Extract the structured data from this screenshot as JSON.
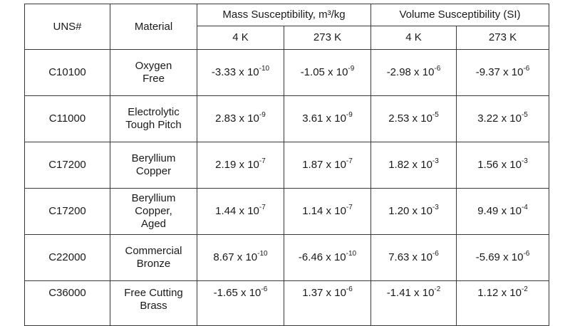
{
  "table": {
    "headers": {
      "uns": "UNS#",
      "material": "Material",
      "mass_group": "Mass Susceptibility, m³/kg",
      "volume_group": "Volume Susceptibility (SI)",
      "temps": [
        "4 K",
        "273 K",
        "4 K",
        "273 K"
      ]
    },
    "rows": [
      {
        "uns": "C10100",
        "material": [
          "Oxygen",
          "Free"
        ],
        "values": [
          {
            "m": "-3.33",
            "e": "-10"
          },
          {
            "m": "-1.05",
            "e": "-9"
          },
          {
            "m": "-2.98",
            "e": "-6"
          },
          {
            "m": "-9.37",
            "e": "-6"
          }
        ]
      },
      {
        "uns": "C11000",
        "material": [
          "Electrolytic",
          "Tough Pitch"
        ],
        "values": [
          {
            "m": "2.83",
            "e": "-9"
          },
          {
            "m": "3.61",
            "e": "-9"
          },
          {
            "m": "2.53",
            "e": "-5"
          },
          {
            "m": "3.22",
            "e": "-5"
          }
        ]
      },
      {
        "uns": "C17200",
        "material": [
          "Beryllium",
          "Copper"
        ],
        "values": [
          {
            "m": "2.19",
            "e": "-7"
          },
          {
            "m": "1.87",
            "e": "-7"
          },
          {
            "m": "1.82",
            "e": "-3"
          },
          {
            "m": "1.56",
            "e": "-3"
          }
        ]
      },
      {
        "uns": "C17200",
        "material": [
          "Beryllium",
          "Copper,",
          "Aged"
        ],
        "values": [
          {
            "m": "1.44",
            "e": "-7"
          },
          {
            "m": "1.14",
            "e": "-7"
          },
          {
            "m": "1.20",
            "e": "-3"
          },
          {
            "m": "9.49",
            "e": "-4"
          }
        ]
      },
      {
        "uns": "C22000",
        "material": [
          "Commercial",
          "Bronze"
        ],
        "values": [
          {
            "m": "8.67",
            "e": "-10"
          },
          {
            "m": "-6.46",
            "e": "-10"
          },
          {
            "m": "7.63",
            "e": "-6"
          },
          {
            "m": "-5.69",
            "e": "-6"
          }
        ]
      },
      {
        "uns": "C36000",
        "material": [
          "Free Cutting",
          "Brass"
        ],
        "values": [
          {
            "m": "-1.65",
            "e": "-6"
          },
          {
            "m": "1.37",
            "e": "-6"
          },
          {
            "m": "-1.41",
            "e": "-2"
          },
          {
            "m": "1.12",
            "e": "-2"
          }
        ]
      }
    ]
  }
}
